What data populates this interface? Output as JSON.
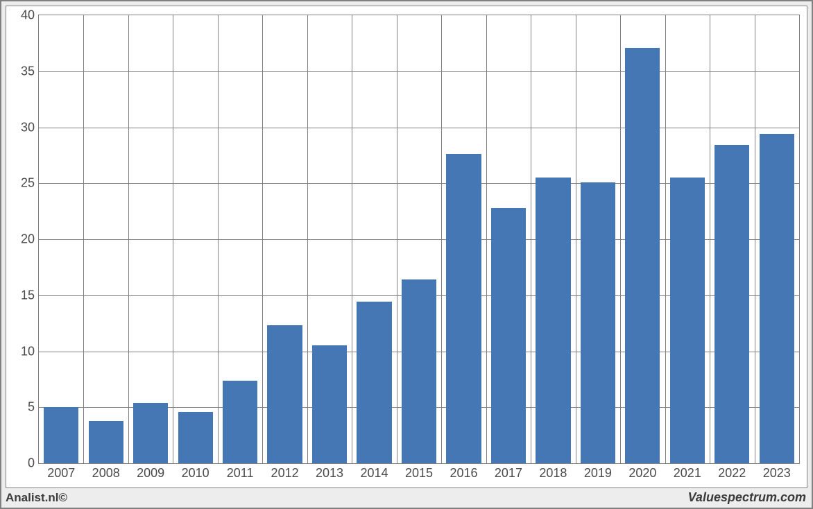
{
  "chart": {
    "type": "bar",
    "categories": [
      "2007",
      "2008",
      "2009",
      "2010",
      "2011",
      "2012",
      "2013",
      "2014",
      "2015",
      "2016",
      "2017",
      "2018",
      "2019",
      "2020",
      "2021",
      "2022",
      "2023"
    ],
    "values": [
      5.0,
      3.8,
      5.4,
      4.6,
      7.4,
      12.3,
      10.5,
      14.4,
      16.4,
      27.6,
      22.8,
      25.5,
      25.1,
      37.1,
      25.5,
      28.4,
      29.4
    ],
    "bar_color": "#4577b4",
    "background_color": "#ffffff",
    "grid_color": "#808080",
    "frame_border_color": "#808080",
    "outer_background": "#ededed",
    "ylim": [
      0,
      40
    ],
    "ytick_step": 5,
    "bar_width_ratio": 0.78,
    "label_fontsize": 18,
    "label_color": "#4a4a4a"
  },
  "footer": {
    "left": "Analist.nl©",
    "right": "Valuespectrum.com"
  }
}
